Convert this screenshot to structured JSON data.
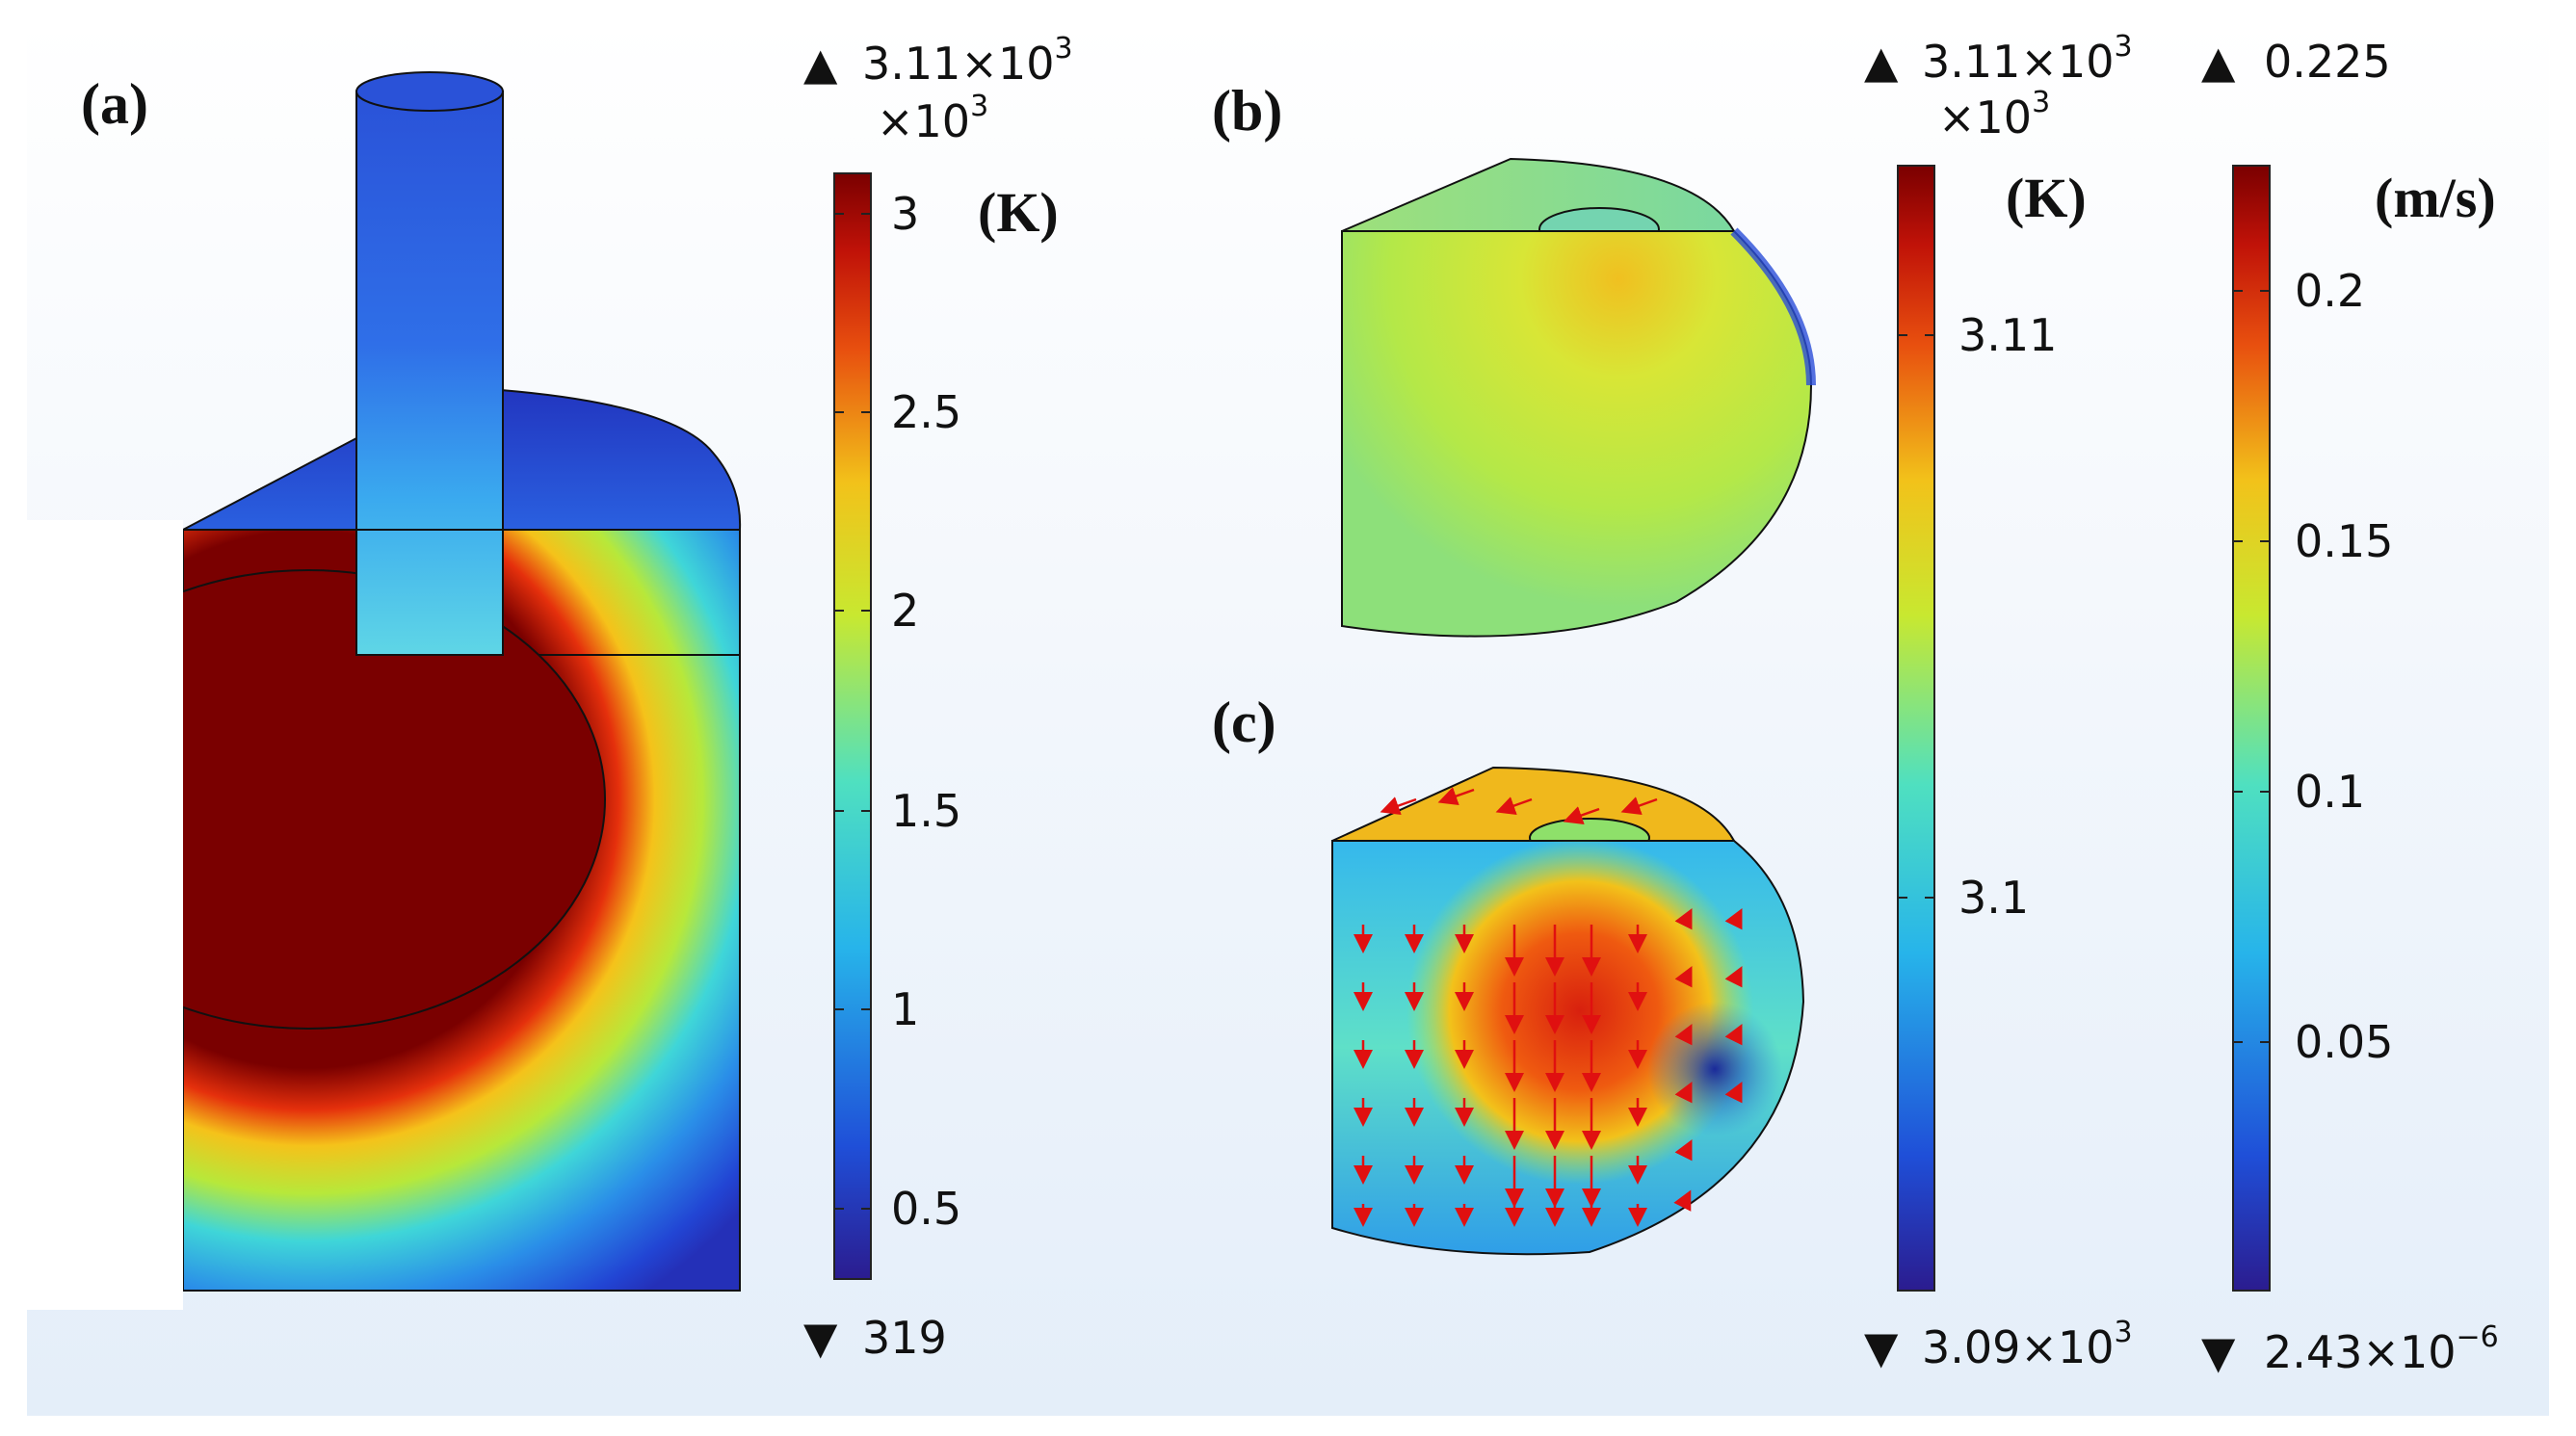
{
  "panels": {
    "a": {
      "label": "(a)"
    },
    "b": {
      "label": "(b)"
    },
    "c": {
      "label": "(c)"
    }
  },
  "colorbars": {
    "temperature_a": {
      "max_label": "3.11×10",
      "max_exp": "3",
      "scale_label": "×10",
      "scale_exp": "3",
      "unit": "(K)",
      "ticks": [
        "3",
        "2.5",
        "2",
        "1.5",
        "1",
        "0.5"
      ],
      "min_label": "319"
    },
    "temperature_bc": {
      "max_label": "3.11×10",
      "max_exp": "3",
      "scale_label": "×10",
      "scale_exp": "3",
      "unit": "(K)",
      "ticks": [
        "3.11",
        "3.1"
      ],
      "min_label": "3.09×10",
      "min_exp": "3"
    },
    "velocity": {
      "max_label": "0.225",
      "unit": "(m/s)",
      "ticks": [
        "0.2",
        "0.15",
        "0.1",
        "0.05"
      ],
      "min_label": "2.43×10",
      "min_exp": "−6"
    }
  },
  "colormap": [
    "#2b1c8f",
    "#1f5fe0",
    "#27c4e6",
    "#c8e830",
    "#f2a51a",
    "#d8250f",
    "#7a0000"
  ]
}
